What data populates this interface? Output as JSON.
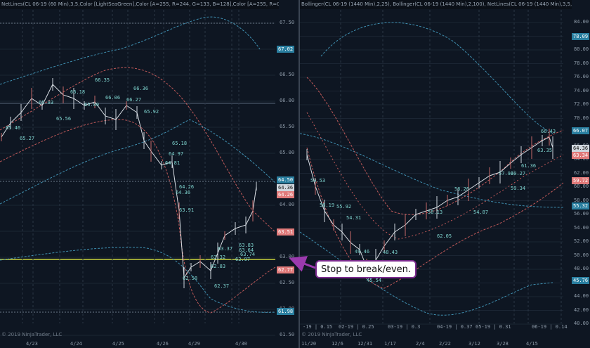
{
  "left_chart": {
    "indicator_text": "NetLines(CL 06-19 (60 Min),3,5,Color [LightSeaGreen],Color [A=255, R=244, G=133, B=128],Color [A=255, R=0, G=131, Bo",
    "price_axis": [
      "67.50",
      "67.00",
      "66.50",
      "66.00",
      "65.50",
      "65.00",
      "64.50",
      "64.00",
      "63.50",
      "63.00",
      "62.50",
      "62.00",
      "61.50"
    ],
    "badges": [
      {
        "text": "67.02",
        "color": "#2a7fa0"
      },
      {
        "text": "64.50",
        "color": "#2a7fa0"
      },
      {
        "text": "64.36",
        "color": "#cfd6dd"
      },
      {
        "text": "64.26",
        "color": "#e07a7a"
      },
      {
        "text": "63.51",
        "color": "#e07a7a"
      },
      {
        "text": "62.77",
        "color": "#e07a7a"
      },
      {
        "text": "61.98",
        "color": "#2a7fa0"
      }
    ],
    "date_labels": [
      "4/23",
      "4/24",
      "4/25",
      "4/26",
      "4/29",
      "4/30"
    ],
    "watermark": "© 2019 NinjaTrader, LLC",
    "chart_labels": [
      "65.27",
      "65.46",
      "65.93",
      "66.18",
      "66.35",
      "66.06",
      "66.36",
      "66.27",
      "65.92",
      "65.80",
      "65.56",
      "65.18",
      "64.97",
      "64.81",
      "64.36",
      "64.26",
      "63.91",
      "63.83",
      "63.64",
      "63.74",
      "63.37",
      "62.97",
      "63.32",
      "62.58",
      "62.83",
      "62.37"
    ]
  },
  "right_chart": {
    "indicator_text": "Bollinger(CL 06-19 (1440 Min),2,25), Bollinger(CL 06-19 (1440 Min),2,100), NetLines(CL 06-19 (1440 Min),3,5,Color [Lig",
    "price_axis": [
      "84.00",
      "82.00",
      "80.00",
      "78.00",
      "76.00",
      "74.00",
      "72.00",
      "70.00",
      "68.00",
      "66.00",
      "64.00",
      "62.00",
      "60.00",
      "58.00",
      "56.00",
      "54.00",
      "52.00",
      "50.00",
      "48.00",
      "46.00",
      "44.00",
      "42.00",
      "40.00"
    ],
    "badges": [
      {
        "text": "78.09",
        "color": "#2a7fa0"
      },
      {
        "text": "66.07",
        "color": "#2a7fa0"
      },
      {
        "text": "64.36",
        "color": "#cfd6dd"
      },
      {
        "text": "63.34",
        "color": "#e07a7a"
      },
      {
        "text": "59.72",
        "color": "#e07a7a"
      },
      {
        "text": "55.32",
        "color": "#2a7fa0"
      },
      {
        "text": "45.76",
        "color": "#2a7fa0"
      }
    ],
    "contract_labels": [
      "-19 | 0.15",
      "02-19 | 0.25",
      "03-19 | 0.3",
      "04-19 | 0.37",
      "05-19 | 0.31",
      "06-19 | 0.14"
    ],
    "date_labels": [
      "11/20",
      "12/6",
      "12/31",
      "1/17",
      "2/4",
      "2/22",
      "3/12",
      "3/28",
      "4/15"
    ],
    "watermark": "© 2019 NinjaTrader, LLC",
    "chart_labels": [
      "59.53",
      "56.19",
      "55.92",
      "54.31",
      "49.46",
      "48.43",
      "45.54",
      "58.13",
      "56.26",
      "54.87",
      "57.93",
      "60.27",
      "61.36",
      "59.34",
      "62.05",
      "66.43",
      "63.35"
    ]
  },
  "annotation": {
    "text": "Stop to break/even."
  }
}
